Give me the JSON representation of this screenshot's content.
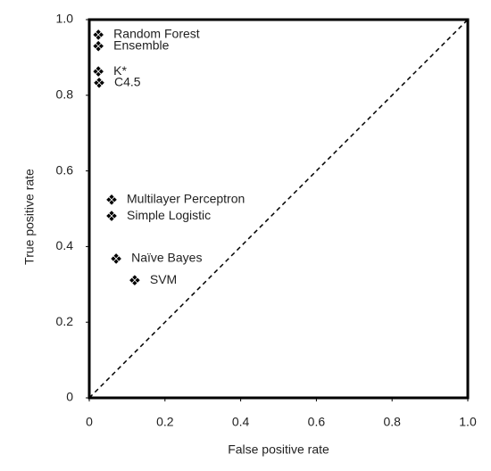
{
  "chart_data": {
    "type": "scatter",
    "x_label": "False positive rate",
    "y_label": "True positive rate",
    "labels": [
      "Random Forest",
      "Ensemble",
      "K*",
      "C4.5",
      "Multilayer Perceptron",
      "Simple Logistic",
      "Naïve Bayes",
      "SVM"
    ],
    "x": [
      0.024,
      0.024,
      0.024,
      0.026,
      0.059,
      0.059,
      0.071,
      0.12
    ],
    "values": [
      0.96,
      0.93,
      0.863,
      0.833,
      0.524,
      0.481,
      0.368,
      0.311
    ],
    "color": "#000000",
    "xlim": [
      0,
      1
    ],
    "ylim": [
      0,
      1
    ],
    "xticks": [
      0,
      0.2,
      0.4,
      0.6,
      0.8,
      {
        "value": 1,
        "label": "1.0"
      }
    ],
    "yticks": [
      0,
      0.2,
      0.4,
      0.6,
      0.8,
      {
        "value": 1,
        "label": "1.0"
      }
    ],
    "diagonal": true
  }
}
